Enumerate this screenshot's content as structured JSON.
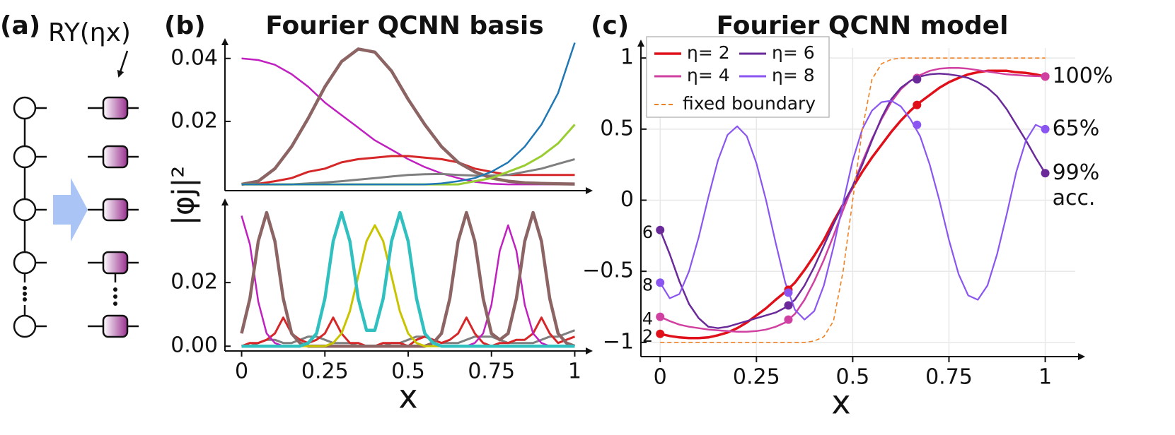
{
  "panel_a": {
    "panel_label": "(a)",
    "gate_label": "RY(ηx)"
  },
  "chart_data": [
    {
      "type": "line",
      "panel_label": "(b)",
      "title": "Fourier QCNN basis",
      "ylabel": "|φj|²",
      "xlim": [
        -0.05,
        1.05
      ],
      "ylim": [
        -0.002,
        0.046
      ],
      "yticks": [
        0.04,
        0.02
      ],
      "x": [
        0,
        0.05,
        0.1,
        0.15,
        0.2,
        0.25,
        0.3,
        0.35,
        0.4,
        0.45,
        0.5,
        0.55,
        0.6,
        0.65,
        0.7,
        0.75,
        0.8,
        0.85,
        0.9,
        0.95,
        1
      ],
      "series": [
        {
          "color": "#c020c0",
          "linewidth": 2.5,
          "values": [
            0.04,
            0.0395,
            0.038,
            0.035,
            0.031,
            0.026,
            0.022,
            0.018,
            0.014,
            0.011,
            0.008,
            0.0055,
            0.0035,
            0.002,
            0.0008,
            0.0002,
            0,
            0,
            0,
            0,
            0
          ]
        },
        {
          "color": "#d62728",
          "linewidth": 3,
          "values": [
            0,
            0.0002,
            0.001,
            0.002,
            0.004,
            0.005,
            0.007,
            0.008,
            0.0085,
            0.009,
            0.009,
            0.0085,
            0.008,
            0.007,
            0.005,
            0.004,
            0.003,
            0.003,
            0.003,
            0.003,
            0.003
          ]
        },
        {
          "color": "#7f7f7f",
          "linewidth": 3,
          "values": [
            0,
            0,
            0,
            0,
            0.0003,
            0.0006,
            0.001,
            0.0015,
            0.002,
            0.0025,
            0.003,
            0.0032,
            0.0033,
            0.003,
            0.0028,
            0.0028,
            0.003,
            0.004,
            0.005,
            0.0065,
            0.008
          ]
        },
        {
          "color": "#8c6464",
          "linewidth": 4.5,
          "values": [
            0,
            0.001,
            0.005,
            0.012,
            0.021,
            0.031,
            0.039,
            0.043,
            0.042,
            0.036,
            0.027,
            0.019,
            0.012,
            0.007,
            0.004,
            0.002,
            0.001,
            0.0005,
            0.0003,
            0.0002,
            0.0001
          ]
        },
        {
          "color": "#9acd32",
          "linewidth": 3,
          "values": [
            0,
            0,
            0,
            0,
            0,
            0,
            0,
            0,
            0,
            0,
            0,
            0,
            0,
            0,
            0.001,
            0.002,
            0.004,
            0.006,
            0.009,
            0.013,
            0.019
          ]
        },
        {
          "color": "#1f77b4",
          "linewidth": 2.5,
          "values": [
            0,
            0,
            0,
            0,
            0,
            0,
            0,
            0,
            0,
            0,
            0,
            0,
            0.0003,
            0.001,
            0.002,
            0.004,
            0.007,
            0.012,
            0.019,
            0.029,
            0.045
          ]
        }
      ]
    },
    {
      "type": "line",
      "xlabel": "x",
      "xlim": [
        -0.05,
        1.05
      ],
      "ylim": [
        -0.0015,
        0.046
      ],
      "yticks": [
        0.02,
        {
          "value": 0,
          "label": "0.00"
        }
      ],
      "xticks": [
        0,
        0.25,
        0.5,
        0.75,
        1
      ],
      "x": [
        0,
        0.025,
        0.05,
        0.075,
        0.1,
        0.125,
        0.15,
        0.175,
        0.2,
        0.225,
        0.25,
        0.275,
        0.3,
        0.325,
        0.35,
        0.375,
        0.4,
        0.425,
        0.45,
        0.475,
        0.5,
        0.525,
        0.55,
        0.575,
        0.6,
        0.625,
        0.65,
        0.675,
        0.7,
        0.725,
        0.75,
        0.775,
        0.8,
        0.825,
        0.85,
        0.875,
        0.9,
        0.925,
        0.95,
        0.975,
        1
      ],
      "series": [
        {
          "color": "#7f7f7f",
          "linewidth": 3,
          "values": [
            0,
            0,
            0.001,
            0.002,
            0.002,
            0.001,
            0.001,
            0.002,
            0.003,
            0.003,
            0.002,
            0.001,
            0.001,
            0.001,
            0,
            0,
            0,
            0,
            0.001,
            0.001,
            0.002,
            0.003,
            0.003,
            0.002,
            0.001,
            0.001,
            0.001,
            0.002,
            0.003,
            0.003,
            0.003,
            0.002,
            0.001,
            0.001,
            0.001,
            0.001,
            0.002,
            0.003,
            0.003,
            0.004,
            0.005
          ]
        },
        {
          "color": "#d62728",
          "linewidth": 3,
          "values": [
            0,
            0.001,
            0.001,
            0.002,
            0.004,
            0.009,
            0.004,
            0.002,
            0.001,
            0.002,
            0.004,
            0.009,
            0.004,
            0.001,
            0.001,
            0,
            0,
            0.001,
            0.001,
            0.001,
            0,
            0.002,
            0.003,
            0.002,
            0.001,
            0.002,
            0.004,
            0.009,
            0.004,
            0.001,
            0,
            0.001,
            0.001,
            0.002,
            0.002,
            0.004,
            0.009,
            0.004,
            0.001,
            0.002,
            0.003
          ]
        },
        {
          "color": "#c020c0",
          "linewidth": 2.5,
          "values": [
            0.041,
            0.032,
            0.014,
            0.004,
            0.001,
            0,
            0,
            0,
            0,
            0,
            0,
            0,
            0,
            0,
            0,
            0,
            0,
            0,
            0,
            0,
            0,
            0,
            0,
            0,
            0,
            0,
            0,
            0,
            0.001,
            0.004,
            0.013,
            0.03,
            0.038,
            0.03,
            0.013,
            0.004,
            0.001,
            0,
            0,
            0,
            0
          ]
        },
        {
          "color": "#8c6464",
          "linewidth": 4.5,
          "values": [
            0.004,
            0.015,
            0.033,
            0.042,
            0.033,
            0.015,
            0.004,
            0.001,
            0,
            0,
            0,
            0,
            0,
            0,
            0,
            0,
            0,
            0,
            0,
            0,
            0,
            0,
            0,
            0.001,
            0.004,
            0.015,
            0.033,
            0.042,
            0.033,
            0.015,
            0.004,
            0.002,
            0.004,
            0.015,
            0.033,
            0.042,
            0.033,
            0.015,
            0.004,
            0.001,
            0
          ]
        },
        {
          "color": "#c8c400",
          "linewidth": 3,
          "values": [
            0,
            0,
            0,
            0,
            0,
            0,
            0,
            0,
            0,
            0,
            0,
            0.001,
            0.004,
            0.011,
            0.022,
            0.033,
            0.038,
            0.033,
            0.022,
            0.011,
            0.004,
            0.001,
            0,
            0,
            0,
            0,
            0,
            0,
            0,
            0,
            0,
            0,
            0,
            0,
            0,
            0,
            0,
            0,
            0,
            0,
            0
          ]
        },
        {
          "color": "#30c0c0",
          "linewidth": 4.5,
          "values": [
            0,
            0,
            0,
            0,
            0,
            0,
            0,
            0,
            0.001,
            0.004,
            0.015,
            0.033,
            0.042,
            0.033,
            0.015,
            0.005,
            0.005,
            0.015,
            0.033,
            0.042,
            0.033,
            0.015,
            0.004,
            0.001,
            0,
            0,
            0,
            0,
            0,
            0,
            0,
            0,
            0,
            0,
            0,
            0,
            0,
            0,
            0,
            0,
            0
          ]
        }
      ]
    },
    {
      "type": "line",
      "panel_label": "(c)",
      "title": "Fourier QCNN model",
      "xlabel": "x",
      "grid": true,
      "xlim": [
        -0.05,
        1.1
      ],
      "ylim": [
        -1.1,
        1.12
      ],
      "yticks": [
        1,
        0.5,
        0,
        {
          "value": -0.5,
          "label": "−0.5"
        },
        {
          "value": -1,
          "label": "−1"
        }
      ],
      "xticks": [
        0,
        0.25,
        0.5,
        0.75,
        1
      ],
      "marker_x": [
        0,
        0.333,
        0.667,
        1
      ],
      "x": [
        0,
        0.025,
        0.05,
        0.075,
        0.1,
        0.125,
        0.15,
        0.175,
        0.2,
        0.225,
        0.25,
        0.275,
        0.3,
        0.325,
        0.35,
        0.375,
        0.4,
        0.425,
        0.45,
        0.475,
        0.5,
        0.525,
        0.55,
        0.575,
        0.6,
        0.625,
        0.65,
        0.675,
        0.7,
        0.725,
        0.75,
        0.775,
        0.8,
        0.825,
        0.85,
        0.875,
        0.9,
        0.925,
        0.95,
        0.975,
        1
      ],
      "series": [
        {
          "name": "η= 2",
          "color": "#e0101a",
          "linewidth": 3.5,
          "start_label": "2",
          "marker_values": [
            -0.94,
            -0.63,
            0.67,
            0.87
          ],
          "values": [
            -0.94,
            -0.955,
            -0.965,
            -0.97,
            -0.97,
            -0.965,
            -0.95,
            -0.93,
            -0.9,
            -0.86,
            -0.81,
            -0.76,
            -0.7,
            -0.645,
            -0.58,
            -0.49,
            -0.39,
            -0.28,
            -0.15,
            -0.03,
            0.09,
            0.2,
            0.3,
            0.39,
            0.48,
            0.56,
            0.63,
            0.69,
            0.74,
            0.79,
            0.83,
            0.86,
            0.885,
            0.9,
            0.91,
            0.91,
            0.91,
            0.9,
            0.895,
            0.885,
            0.87
          ]
        },
        {
          "name": "η= 4",
          "color": "#d040a0",
          "linewidth": 2.5,
          "start_label": "4",
          "end_label": "100%",
          "marker_values": [
            -0.82,
            -0.84,
            0.86,
            0.87
          ],
          "values": [
            -0.82,
            -0.85,
            -0.875,
            -0.89,
            -0.9,
            -0.91,
            -0.915,
            -0.92,
            -0.925,
            -0.925,
            -0.92,
            -0.91,
            -0.89,
            -0.86,
            -0.8,
            -0.7,
            -0.57,
            -0.42,
            -0.25,
            -0.07,
            0.1,
            0.27,
            0.43,
            0.57,
            0.69,
            0.78,
            0.84,
            0.88,
            0.91,
            0.925,
            0.93,
            0.93,
            0.925,
            0.915,
            0.905,
            0.895,
            0.885,
            0.88,
            0.875,
            0.873,
            0.87
          ]
        },
        {
          "name": "η= 6",
          "color": "#6a2a9a",
          "linewidth": 2.5,
          "start_label": "6",
          "end_label": "99%",
          "end_note": "acc.",
          "marker_values": [
            -0.21,
            -0.74,
            0.85,
            0.19
          ],
          "values": [
            -0.21,
            -0.38,
            -0.57,
            -0.73,
            -0.83,
            -0.89,
            -0.9,
            -0.89,
            -0.87,
            -0.85,
            -0.83,
            -0.81,
            -0.79,
            -0.755,
            -0.7,
            -0.6,
            -0.47,
            -0.32,
            -0.17,
            -0.03,
            0.1,
            0.25,
            0.42,
            0.58,
            0.71,
            0.79,
            0.84,
            0.87,
            0.885,
            0.89,
            0.885,
            0.875,
            0.86,
            0.83,
            0.79,
            0.73,
            0.64,
            0.53,
            0.42,
            0.3,
            0.19
          ]
        },
        {
          "name": "η= 8",
          "color": "#8a55f0",
          "linewidth": 2.2,
          "start_label": "8",
          "end_label": "65%",
          "marker_values": [
            -0.58,
            -0.65,
            0.53,
            0.5
          ],
          "values": [
            -0.58,
            -0.69,
            -0.66,
            -0.5,
            -0.26,
            0.02,
            0.28,
            0.46,
            0.52,
            0.45,
            0.26,
            0,
            -0.3,
            -0.58,
            -0.77,
            -0.84,
            -0.78,
            -0.6,
            -0.33,
            -0.02,
            0.28,
            0.5,
            0.63,
            0.69,
            0.7,
            0.66,
            0.57,
            0.45,
            0.25,
            0,
            -0.28,
            -0.52,
            -0.67,
            -0.7,
            -0.6,
            -0.38,
            -0.1,
            0.2,
            0.42,
            0.53,
            0.5
          ]
        },
        {
          "name": "fixed boundary",
          "color": "#f08020",
          "linewidth": 1.6,
          "linestyle": "dashed",
          "values": [
            -1,
            -1,
            -1,
            -1,
            -1,
            -1,
            -1,
            -1,
            -1,
            -1,
            -1,
            -1,
            -1,
            -1,
            -1,
            -1,
            -0.99,
            -0.96,
            -0.85,
            -0.5,
            0,
            0.5,
            0.85,
            0.96,
            0.99,
            1,
            1,
            1,
            1,
            1,
            1,
            1,
            1,
            1,
            1,
            1,
            1,
            1,
            1,
            1,
            1
          ]
        }
      ]
    }
  ]
}
